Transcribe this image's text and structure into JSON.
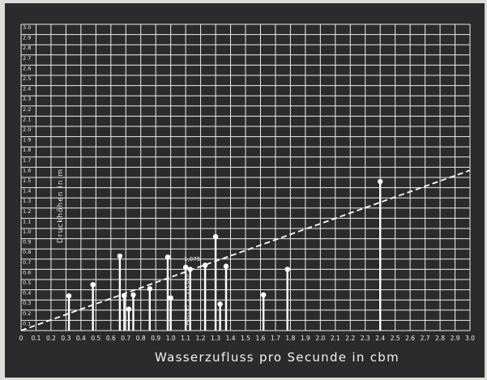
{
  "chart_data": {
    "type": "scatter",
    "title": "",
    "xlabel": "Wasserzufluss pro Secunde in cbm",
    "ylabel": "Druckhöhen in m",
    "xlim": [
      0,
      3.0
    ],
    "ylim": [
      0,
      3.0
    ],
    "grid": true,
    "x_ticks": [
      "0",
      "0.1",
      "0.2",
      "0.3",
      "0.4",
      "0.5",
      "0.6",
      "0.7",
      "0.8",
      "0.9",
      "1.0",
      "1.1",
      "1.2",
      "1.3",
      "1.4",
      "1.5",
      "1.6",
      "1.7",
      "1.8",
      "1.9",
      "2.0",
      "2.1",
      "2.2",
      "2.3",
      "2.4",
      "2.5",
      "2.6",
      "2.7",
      "2.8",
      "2.9",
      "3.0"
    ],
    "y_ticks": [
      "0.1",
      "0.2",
      "0.3",
      "0.4",
      "0.5",
      "0.6",
      "0.7",
      "0.8",
      "0.9",
      "1.0",
      "1.1",
      "1.2",
      "1.3",
      "1.4",
      "1.5",
      "1.6",
      "1.7",
      "1.8",
      "1.9",
      "2.0",
      "2.1",
      "2.2",
      "2.3",
      "2.4",
      "2.5",
      "2.6",
      "2.7",
      "2.8",
      "2.9",
      "3.0"
    ],
    "series": [
      {
        "style": "stem",
        "x": [
          0.32,
          0.48,
          0.66,
          0.69,
          0.72,
          0.75,
          0.86,
          0.98,
          1.0,
          1.1,
          1.13,
          1.23,
          1.3,
          1.33,
          1.37,
          1.62,
          1.78,
          2.4
        ],
        "y": [
          0.34,
          0.45,
          0.73,
          0.34,
          0.21,
          0.35,
          0.41,
          0.72,
          0.32,
          0.62,
          0.6,
          0.64,
          0.92,
          0.26,
          0.63,
          0.35,
          0.6,
          1.46
        ]
      },
      {
        "style": "dashed-line",
        "x": [
          0,
          3.0
        ],
        "y": [
          0,
          1.57
        ]
      }
    ],
    "annotations": [
      {
        "text": "1,075",
        "x": 1.1,
        "y": 0.66
      },
      {
        "text": "Mittel 1.1 cbm",
        "x": 1.12,
        "y": 0.05
      }
    ]
  }
}
